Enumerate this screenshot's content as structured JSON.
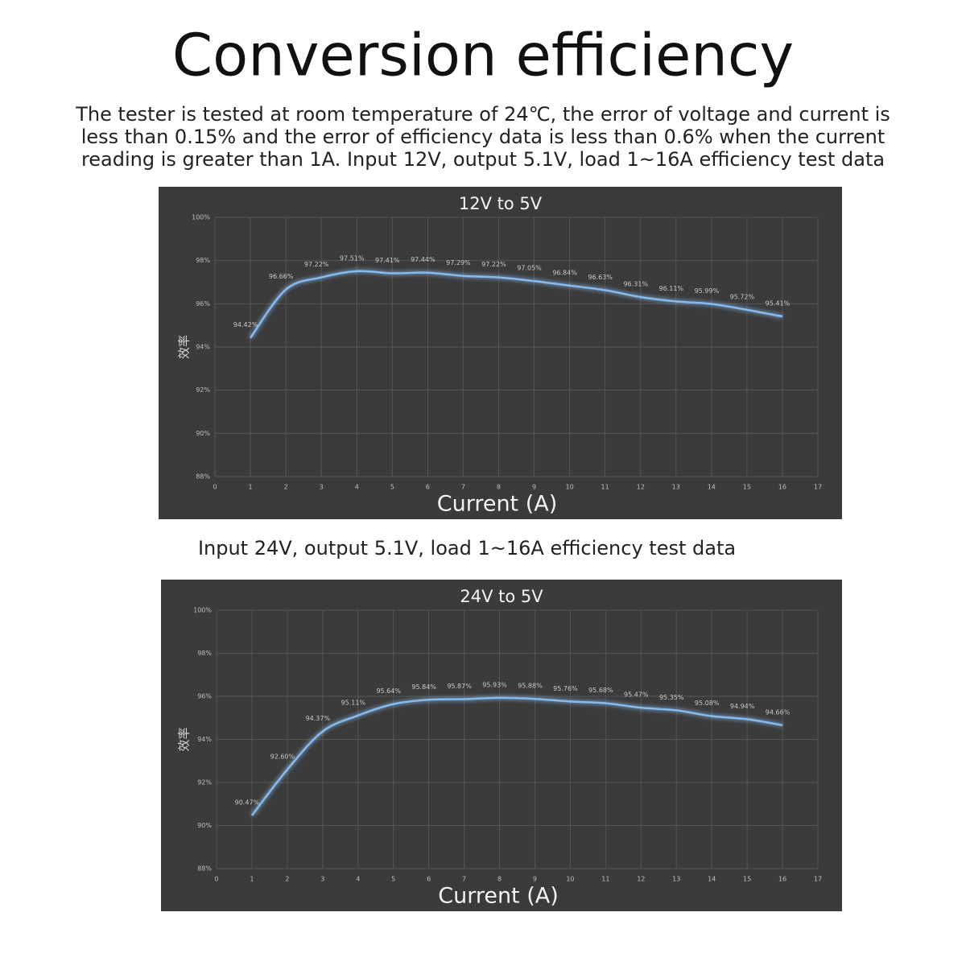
{
  "heading": "Conversion efficiency",
  "intro": [
    "The tester is tested at room temperature of 24℃, the error of voltage and current is",
    "less than 0.15% and the error of efficiency data is less than 0.6% when the current",
    "reading is greater than 1A. Input 12V, output 5.1V, load 1~16A efficiency test data"
  ],
  "caption": "Input 24V, output 5.1V, load 1~16A efficiency test data",
  "chart_data": [
    {
      "type": "line",
      "title": "12V to 5V",
      "x_label": "Current (A)",
      "y_label": "效率",
      "color": "#86b9ec",
      "grid": true,
      "x": [
        1,
        2,
        3,
        4,
        5,
        6,
        7,
        8,
        9,
        10,
        11,
        12,
        13,
        14,
        15,
        16
      ],
      "values": [
        94.42,
        96.66,
        97.22,
        97.51,
        97.41,
        97.44,
        97.29,
        97.22,
        97.05,
        96.84,
        96.63,
        96.31,
        96.11,
        95.99,
        95.72,
        95.41
      ],
      "value_labels": [
        "94.42%",
        "96.66%",
        "97.22%",
        "97.51%",
        "97.41%",
        "97.44%",
        "97.29%",
        "97.22%",
        "97.05%",
        "96.84%",
        "96.63%",
        "96.31%",
        "96.11%",
        "95.99%",
        "95.72%",
        "95.41%"
      ],
      "xlim": [
        0,
        17
      ],
      "xticks": [
        0,
        1,
        2,
        3,
        4,
        5,
        6,
        7,
        8,
        9,
        10,
        11,
        12,
        13,
        14,
        15,
        16,
        17
      ],
      "ylim": [
        88,
        100
      ],
      "yticks": [
        {
          "value": 88,
          "label": "88%"
        },
        {
          "value": 90,
          "label": "90%"
        },
        {
          "value": 92,
          "label": "92%"
        },
        {
          "value": 94,
          "label": "94%"
        },
        {
          "value": 96,
          "label": "96%"
        },
        {
          "value": 98,
          "label": "98%"
        },
        {
          "value": 100,
          "label": "100%"
        }
      ]
    },
    {
      "type": "line",
      "title": "24V to 5V",
      "x_label": "Current (A)",
      "y_label": "效率",
      "color": "#86b9ec",
      "grid": true,
      "x": [
        1,
        2,
        3,
        4,
        5,
        6,
        7,
        8,
        9,
        10,
        11,
        12,
        13,
        14,
        15,
        16
      ],
      "values": [
        90.47,
        92.6,
        94.37,
        95.11,
        95.64,
        95.84,
        95.87,
        95.93,
        95.88,
        95.76,
        95.68,
        95.47,
        95.35,
        95.08,
        94.94,
        94.66
      ],
      "value_labels": [
        "90.47%",
        "92.60%",
        "94.37%",
        "95.11%",
        "95.64%",
        "95.84%",
        "95.87%",
        "95.93%",
        "95.88%",
        "95.76%",
        "95.68%",
        "95.47%",
        "95.35%",
        "95.08%",
        "94.94%",
        "94.66%"
      ],
      "xlim": [
        0,
        17
      ],
      "xticks": [
        0,
        1,
        2,
        3,
        4,
        5,
        6,
        7,
        8,
        9,
        10,
        11,
        12,
        13,
        14,
        15,
        16,
        17
      ],
      "ylim": [
        88,
        100
      ],
      "yticks": [
        {
          "value": 88,
          "label": "88%"
        },
        {
          "value": 90,
          "label": "90%"
        },
        {
          "value": 92,
          "label": "92%"
        },
        {
          "value": 94,
          "label": "94%"
        },
        {
          "value": 96,
          "label": "96%"
        },
        {
          "value": 98,
          "label": "98%"
        },
        {
          "value": 100,
          "label": "100%"
        }
      ]
    }
  ]
}
